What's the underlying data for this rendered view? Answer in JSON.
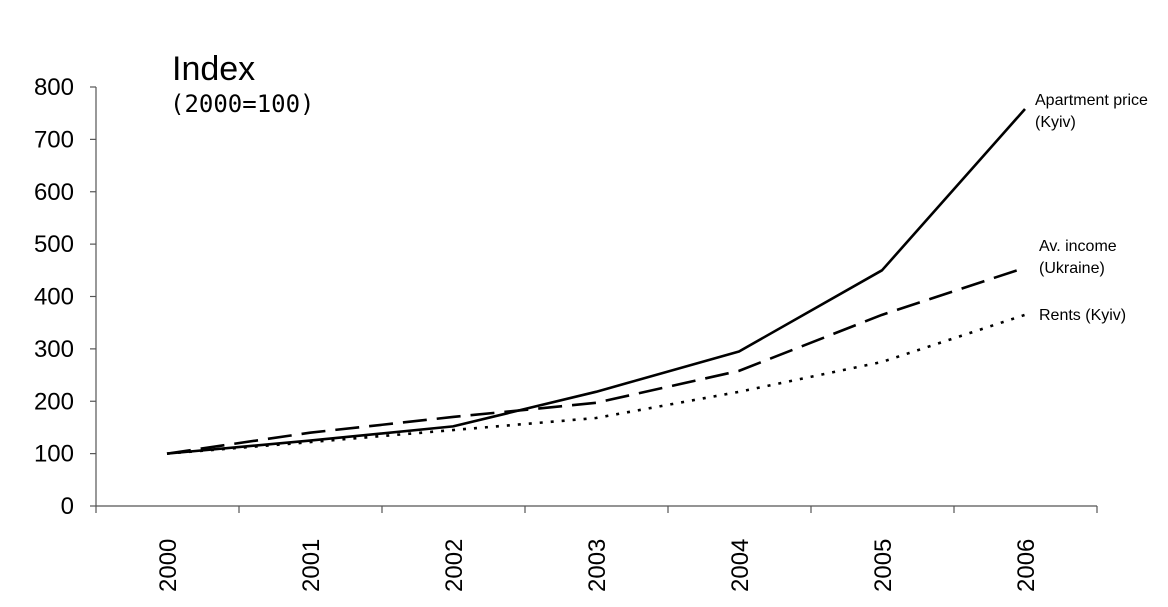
{
  "chart_data": {
    "type": "line",
    "title": "Index",
    "subtitle": "(2000=100)",
    "x": [
      "2000",
      "2001",
      "2002",
      "2003",
      "2004",
      "2005",
      "2006"
    ],
    "ylim": [
      0,
      800
    ],
    "yticks": [
      "0",
      "100",
      "200",
      "300",
      "400",
      "500",
      "600",
      "700",
      "800"
    ],
    "grid": false,
    "series": [
      {
        "name_lines": [
          "Apartment price",
          "(Kyiv)"
        ],
        "style": "solid",
        "values": [
          100,
          125,
          152,
          218,
          295,
          450,
          758
        ]
      },
      {
        "name_lines": [
          "Av. income",
          "(Ukraine)"
        ],
        "style": "dashed",
        "values": [
          100,
          140,
          170,
          197,
          258,
          365,
          455
        ]
      },
      {
        "name_lines": [
          "Rents (Kyiv)"
        ],
        "style": "dotted",
        "values": [
          100,
          122,
          145,
          168,
          218,
          275,
          365
        ]
      }
    ]
  }
}
